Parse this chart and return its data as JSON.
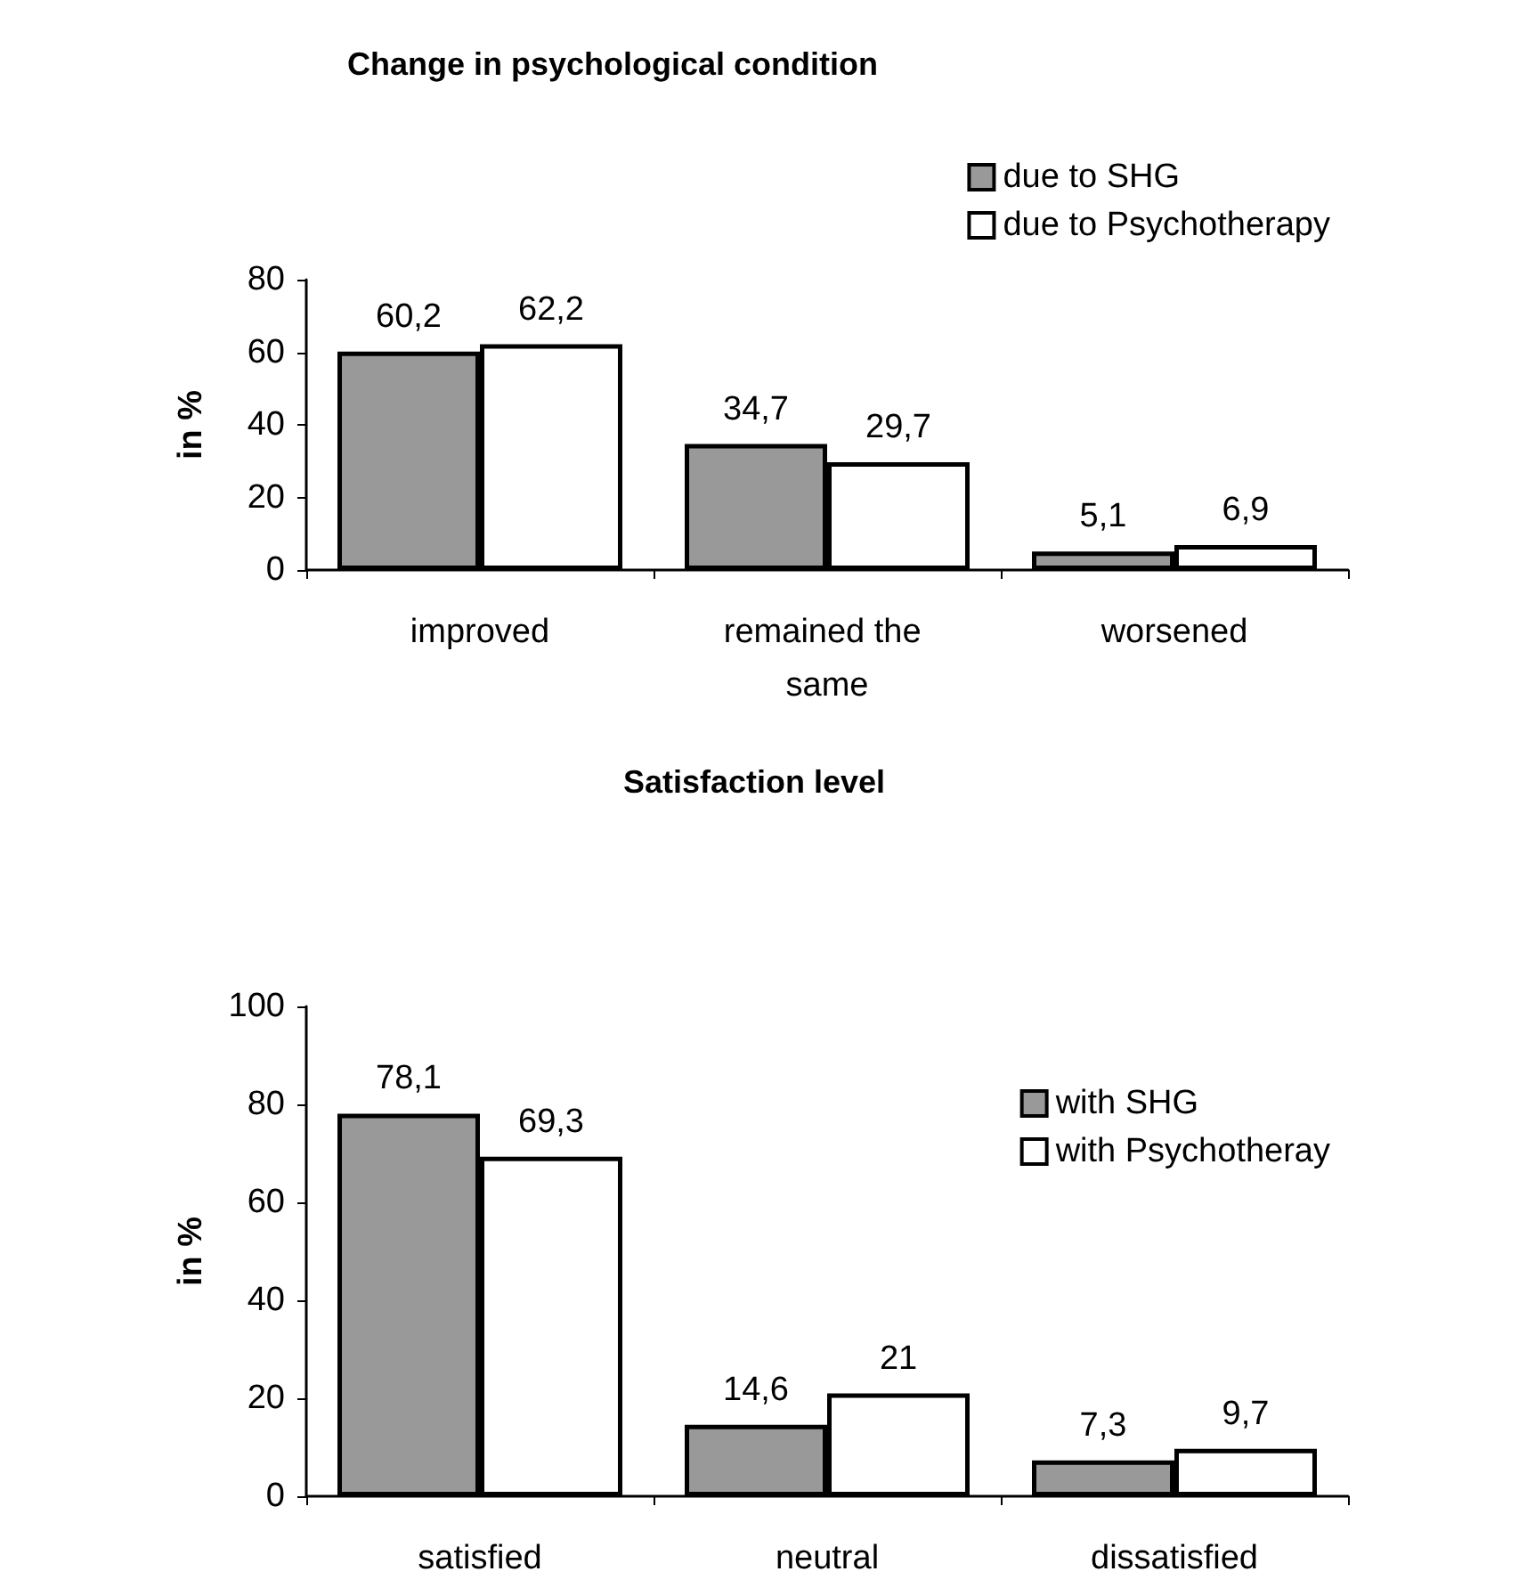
{
  "chart_data": [
    {
      "type": "bar",
      "title": "Change in psychological condition",
      "ylabel": "in %",
      "categories": [
        "improved",
        "remained the same",
        "worsened"
      ],
      "series": [
        {
          "name": "due to SHG",
          "color": "#999999",
          "values": [
            60.2,
            34.7,
            5.1
          ],
          "value_labels": [
            "60,2",
            "34,7",
            "5,1"
          ]
        },
        {
          "name": "due to Psychotherapy",
          "color": "#ffffff",
          "values": [
            62.2,
            29.7,
            6.9
          ],
          "value_labels": [
            "62,2",
            "29,7",
            "6,9"
          ]
        }
      ],
      "ylim": [
        0,
        80
      ],
      "yticks": [
        0,
        20,
        40,
        60,
        80
      ],
      "grid": false,
      "legend": "top right"
    },
    {
      "type": "bar",
      "title": "Satisfaction level",
      "ylabel": "in %",
      "categories": [
        "satisfied",
        "neutral",
        "dissatisfied"
      ],
      "series": [
        {
          "name": "with SHG",
          "color": "#999999",
          "values": [
            78.1,
            14.6,
            7.3
          ],
          "value_labels": [
            "78,1",
            "14,6",
            "7,3"
          ]
        },
        {
          "name": "with Psychotheray",
          "color": "#ffffff",
          "values": [
            69.3,
            21,
            9.7
          ],
          "value_labels": [
            "69,3",
            "21",
            "9,7"
          ]
        }
      ],
      "ylim": [
        0,
        100
      ],
      "yticks": [
        0,
        20,
        40,
        60,
        80,
        100
      ],
      "grid": false,
      "legend": "top right"
    }
  ]
}
